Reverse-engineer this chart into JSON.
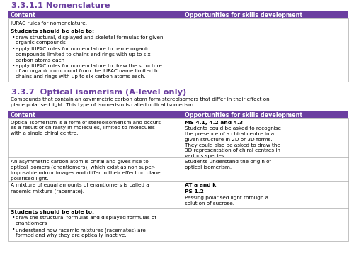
{
  "bg_color": "#ffffff",
  "purple": "#6b3fa0",
  "border_color": "#aaaaaa",
  "section1_title": "3.3.1.1 Nomenclature",
  "section2_title": "3.3.7  Optical isomerism (A-level only)",
  "header_content": "Content",
  "header_skills": "Opportunities for skills development",
  "sec1_intro": "IUPAC rules for nomenclature.",
  "sec1_bold": "Students should be able to:",
  "sec1_b1": "draw structural, displayed and skeletal formulas for given\norganic compounds",
  "sec1_b2": "apply IUPAC rules for nomenclature to name organic\ncompounds limited to chains and rings with up to six\ncarbon atoms each",
  "sec1_b3": "apply IUPAC rules for nomenclature to draw the structure\nof an organic compound from the IUPAC name limited to\nchains and rings with up to six carbon atoms each.",
  "sec2_intro": "Compounds that contain an asymmetric carbon atom form stereoisomers that differ in their effect on\nplane polarised light. This type of isomerism is called optical isomerism.",
  "t2r1_left": "Optical isomerism is a form of stereoisomerism and occurs\nas a result of chirality in molecules, limited to molecules\nwith a single chiral centre.",
  "t2r1_right_bold": "MS 4.1, 4.2 and 4.3",
  "t2r1_right_body": "Students could be asked to recognise\nthe presence of a chiral centre in a\ngiven structure in 2D or 3D forms.\nThey could also be asked to draw the\n3D representation of chiral centres in\nvarious species.",
  "t2r2_left": "An asymmetric carbon atom is chiral and gives rise to\noptical isomers (enantiomers), which exist as non super-\nimposable mirror images and differ in their effect on plane\npolarised light.",
  "t2r2_right": "Students understand the origin of\noptical isomerism.",
  "t2r3_left": "A mixture of equal amounts of enantiomers is called a\nracemic mixture (racemate).",
  "t2r3_right1": "AT a and k",
  "t2r3_right2": "PS 1.2",
  "t2r3_right3": "Passing polarised light through a\nsolution of sucrose.",
  "t2r4_bold": "Students should be able to:",
  "t2r4_b1": "draw the structural formulas and displayed formulas of\nenantiomers",
  "t2r4_b2": "understand how racemic mixtures (racemates) are\nformed and why they are optically inactive."
}
